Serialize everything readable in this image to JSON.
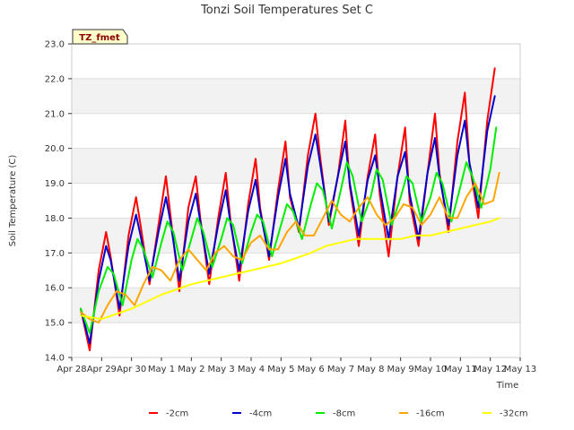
{
  "chart_data": {
    "type": "line",
    "title": "Tonzi Soil Temperatures Set C",
    "xlabel": "Time",
    "ylabel": "Soil Temperature (C)",
    "badge": "TZ_fmet",
    "xlim": [
      0,
      15
    ],
    "ylim": [
      14.0,
      23.0
    ],
    "yticks": [
      14.0,
      15.0,
      16.0,
      17.0,
      18.0,
      19.0,
      20.0,
      21.0,
      22.0,
      23.0
    ],
    "ytick_labels": [
      "14.0",
      "15.0",
      "16.0",
      "17.0",
      "18.0",
      "19.0",
      "20.0",
      "21.0",
      "22.0",
      "23.0"
    ],
    "xticks": [
      0,
      1,
      2,
      3,
      4,
      5,
      6,
      7,
      8,
      9,
      10,
      11,
      12,
      13,
      14,
      15
    ],
    "xtick_labels": [
      "Apr 28",
      "Apr 29",
      "Apr 30",
      "May 1",
      "May 2",
      "May 3",
      "May 4",
      "May 5",
      "May 6",
      "May 7",
      "May 8",
      "May 9",
      "May 10",
      "May 11",
      "May 12",
      "May 13"
    ],
    "grid": true,
    "legend_position": "bottom",
    "x_units": "days since Apr 28",
    "series": [
      {
        "name": "-2cm",
        "color": "#ff0000",
        "x": [
          0.3,
          0.6,
          0.9,
          1.15,
          1.3,
          1.6,
          1.9,
          2.15,
          2.3,
          2.6,
          2.9,
          3.15,
          3.3,
          3.6,
          3.9,
          4.15,
          4.3,
          4.6,
          4.9,
          5.15,
          5.3,
          5.6,
          5.9,
          6.15,
          6.3,
          6.6,
          6.9,
          7.15,
          7.3,
          7.6,
          7.9,
          8.15,
          8.3,
          8.6,
          8.9,
          9.15,
          9.3,
          9.6,
          9.9,
          10.15,
          10.3,
          10.6,
          10.9,
          11.15,
          11.3,
          11.6,
          11.9,
          12.15,
          12.3,
          12.6,
          12.9,
          13.15,
          13.3,
          13.6,
          13.9,
          14.15
        ],
        "y": [
          15.4,
          14.2,
          16.5,
          17.6,
          16.9,
          15.2,
          17.5,
          18.6,
          17.8,
          16.1,
          17.8,
          19.2,
          18.1,
          15.9,
          18.3,
          19.2,
          18.0,
          16.1,
          18.0,
          19.3,
          18.0,
          16.2,
          18.4,
          19.7,
          18.3,
          16.8,
          18.8,
          20.2,
          18.6,
          17.6,
          19.8,
          21.0,
          19.8,
          17.8,
          19.2,
          20.8,
          18.9,
          17.2,
          19.2,
          20.4,
          18.7,
          16.9,
          19.2,
          20.6,
          18.5,
          17.2,
          19.3,
          21.0,
          19.3,
          17.6,
          20.2,
          21.6,
          19.6,
          18.0,
          20.8,
          22.3
        ]
      },
      {
        "name": "-4cm",
        "color": "#0000cc",
        "x": [
          0.3,
          0.6,
          0.9,
          1.15,
          1.3,
          1.6,
          1.9,
          2.15,
          2.3,
          2.6,
          2.9,
          3.15,
          3.3,
          3.6,
          3.9,
          4.15,
          4.3,
          4.6,
          4.9,
          5.15,
          5.3,
          5.6,
          5.9,
          6.15,
          6.3,
          6.6,
          6.9,
          7.15,
          7.3,
          7.6,
          7.9,
          8.15,
          8.3,
          8.6,
          8.9,
          9.15,
          9.3,
          9.6,
          9.9,
          10.15,
          10.3,
          10.6,
          10.9,
          11.15,
          11.3,
          11.6,
          11.9,
          12.15,
          12.3,
          12.6,
          12.9,
          13.15,
          13.3,
          13.6,
          13.9,
          14.15
        ],
        "y": [
          15.4,
          14.4,
          16.2,
          17.2,
          16.8,
          15.4,
          17.2,
          18.1,
          17.5,
          16.2,
          17.6,
          18.6,
          17.9,
          16.2,
          17.9,
          18.7,
          17.9,
          16.4,
          17.8,
          18.8,
          17.9,
          16.5,
          18.2,
          19.1,
          18.2,
          16.9,
          18.6,
          19.7,
          18.7,
          17.7,
          19.5,
          20.4,
          19.6,
          17.9,
          19.2,
          20.2,
          19.0,
          17.5,
          19.1,
          19.8,
          18.9,
          17.4,
          19.2,
          19.9,
          18.7,
          17.4,
          19.3,
          20.3,
          19.2,
          17.8,
          19.8,
          20.8,
          19.6,
          18.3,
          20.5,
          21.5
        ]
      },
      {
        "name": "-8cm",
        "color": "#00ee00",
        "x": [
          0.3,
          0.6,
          0.9,
          1.2,
          1.4,
          1.7,
          2.0,
          2.2,
          2.4,
          2.7,
          3.0,
          3.2,
          3.4,
          3.7,
          4.0,
          4.2,
          4.4,
          4.7,
          5.0,
          5.2,
          5.4,
          5.7,
          6.0,
          6.2,
          6.4,
          6.7,
          7.0,
          7.2,
          7.4,
          7.7,
          8.0,
          8.2,
          8.4,
          8.7,
          9.0,
          9.2,
          9.4,
          9.7,
          10.0,
          10.2,
          10.4,
          10.7,
          11.0,
          11.2,
          11.4,
          11.7,
          12.0,
          12.2,
          12.4,
          12.7,
          13.0,
          13.2,
          13.4,
          13.7,
          14.0,
          14.2
        ],
        "y": [
          15.4,
          14.7,
          15.9,
          16.6,
          16.4,
          15.5,
          16.8,
          17.4,
          17.1,
          16.3,
          17.3,
          17.9,
          17.6,
          16.5,
          17.4,
          18.0,
          17.6,
          16.6,
          17.4,
          18.0,
          17.8,
          16.7,
          17.6,
          18.1,
          17.9,
          16.9,
          17.8,
          18.4,
          18.2,
          17.4,
          18.4,
          19.0,
          18.8,
          17.7,
          18.8,
          19.6,
          19.2,
          17.9,
          18.6,
          19.4,
          19.1,
          17.8,
          18.6,
          19.2,
          19.0,
          17.9,
          18.6,
          19.3,
          19.0,
          17.9,
          18.9,
          19.6,
          19.2,
          18.3,
          19.4,
          20.6
        ]
      },
      {
        "name": "-16cm",
        "color": "#ffa500",
        "x": [
          0.3,
          0.6,
          0.9,
          1.2,
          1.5,
          1.8,
          2.1,
          2.4,
          2.7,
          3.0,
          3.3,
          3.6,
          3.9,
          4.2,
          4.5,
          4.8,
          5.1,
          5.4,
          5.7,
          6.0,
          6.3,
          6.6,
          6.9,
          7.2,
          7.5,
          7.8,
          8.1,
          8.4,
          8.7,
          9.0,
          9.3,
          9.6,
          9.9,
          10.2,
          10.5,
          10.8,
          11.1,
          11.4,
          11.7,
          12.0,
          12.3,
          12.6,
          12.9,
          13.2,
          13.5,
          13.8,
          14.1,
          14.3
        ],
        "y": [
          15.3,
          15.1,
          15.0,
          15.5,
          15.9,
          15.8,
          15.5,
          16.1,
          16.6,
          16.5,
          16.2,
          16.8,
          17.1,
          16.8,
          16.5,
          17.0,
          17.2,
          16.9,
          16.8,
          17.3,
          17.5,
          17.1,
          17.1,
          17.6,
          17.9,
          17.5,
          17.5,
          18.0,
          18.5,
          18.1,
          17.9,
          18.3,
          18.6,
          18.1,
          17.8,
          18.0,
          18.4,
          18.3,
          17.8,
          18.1,
          18.6,
          18.0,
          18.0,
          18.6,
          19.0,
          18.4,
          18.5,
          19.3
        ]
      },
      {
        "name": "-32cm",
        "color": "#ffff00",
        "x": [
          0.3,
          1.0,
          2.0,
          3.0,
          4.0,
          5.0,
          6.0,
          7.0,
          8.0,
          8.5,
          9.0,
          9.5,
          10.0,
          10.5,
          11.0,
          11.5,
          12.0,
          12.5,
          13.0,
          13.5,
          14.0,
          14.3
        ],
        "y": [
          15.2,
          15.1,
          15.4,
          15.8,
          16.1,
          16.3,
          16.5,
          16.7,
          17.0,
          17.2,
          17.3,
          17.4,
          17.4,
          17.4,
          17.4,
          17.5,
          17.5,
          17.6,
          17.7,
          17.8,
          17.9,
          18.0
        ]
      }
    ]
  }
}
